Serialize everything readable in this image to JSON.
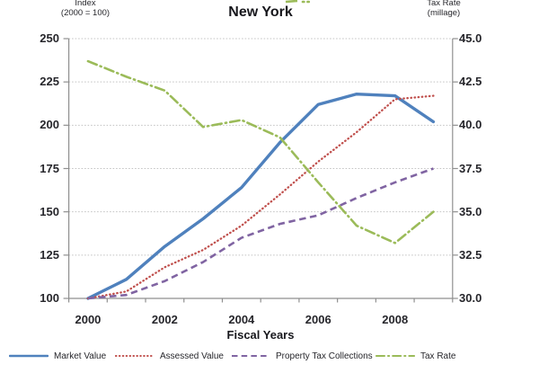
{
  "title": "New York",
  "left_axis": {
    "title_line1": "Index",
    "title_line2": "(2000 = 100)",
    "ticks": [
      250,
      225,
      200,
      175,
      150,
      125,
      100
    ]
  },
  "right_axis": {
    "title_line1": "Tax Rate",
    "title_line2": "(millage)",
    "ticks": [
      "45.0",
      "42.5",
      "40.0",
      "37.5",
      "35.0",
      "32.5",
      "30.0"
    ]
  },
  "x_axis": {
    "title": "Fiscal Years",
    "tick_labels": [
      "2000",
      "2002",
      "2004",
      "2006",
      "2008"
    ]
  },
  "legend": [
    {
      "label": "Market Value",
      "style": "solid",
      "color": "#4F81BD"
    },
    {
      "label": "Assessed Value",
      "style": "dotted",
      "color": "#C0504D"
    },
    {
      "label": "Property Tax Collections",
      "style": "dashed",
      "color": "#8064A2"
    },
    {
      "label": "Tax Rate",
      "style": "dashdot",
      "color": "#9BBB59"
    }
  ],
  "chart_data": {
    "type": "line",
    "title": "New York",
    "x": [
      2000,
      2001,
      2002,
      2003,
      2004,
      2005,
      2006,
      2007,
      2008,
      2009
    ],
    "series": [
      {
        "name": "Market Value",
        "axis": "left",
        "color": "#4F81BD",
        "style": "solid",
        "values": [
          100,
          111,
          130,
          146,
          164,
          190,
          212,
          218,
          217,
          202
        ]
      },
      {
        "name": "Assessed Value",
        "axis": "left",
        "color": "#C0504D",
        "style": "dotted",
        "values": [
          100,
          104,
          118,
          128,
          142,
          160,
          179,
          196,
          215,
          217
        ]
      },
      {
        "name": "Property Tax Collections",
        "axis": "left",
        "color": "#8064A2",
        "style": "dashed",
        "values": [
          100,
          102,
          110,
          121,
          135,
          143,
          148,
          158,
          167,
          175
        ]
      },
      {
        "name": "Tax Rate",
        "axis": "right",
        "color": "#9BBB59",
        "style": "dashdot",
        "values": [
          43.7,
          42.8,
          42.0,
          39.9,
          40.3,
          39.3,
          36.7,
          34.2,
          33.2,
          35.0
        ]
      }
    ],
    "xlabel": "Fiscal Years",
    "ylabel_left": "Index (2000 = 100)",
    "ylabel_right": "Tax Rate (millage)",
    "ylim_left": [
      100,
      250
    ],
    "ylim_right": [
      30.0,
      45.0
    ],
    "grid": true,
    "legend_position": "bottom"
  }
}
